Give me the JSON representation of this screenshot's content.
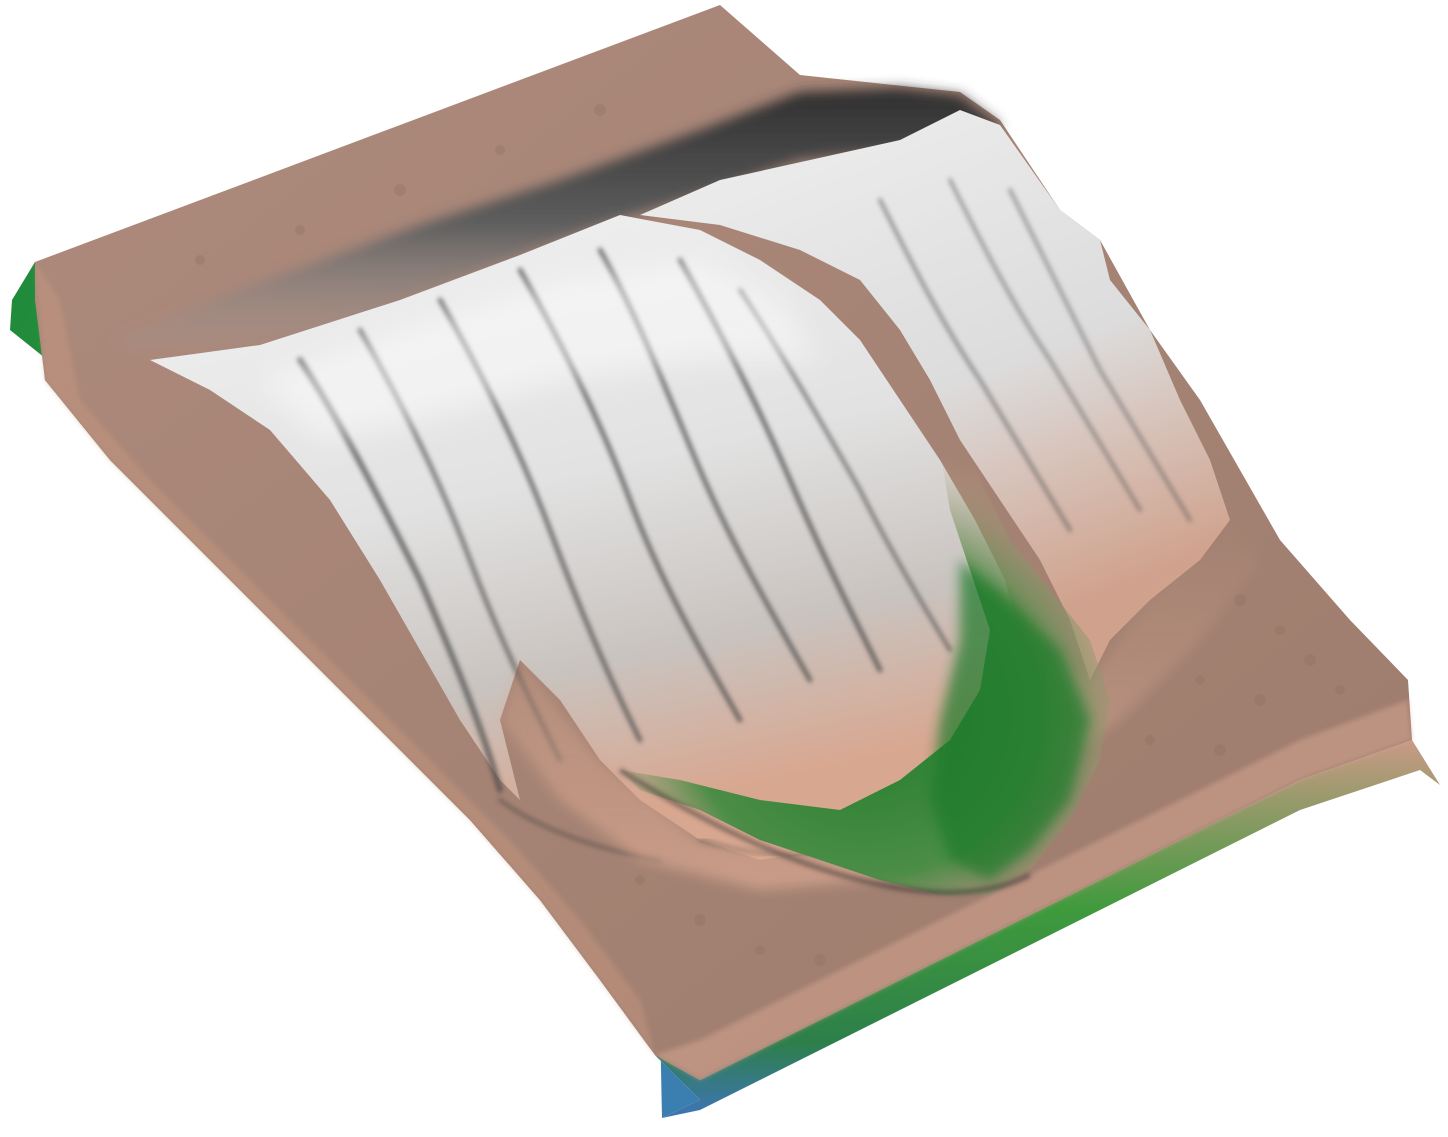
{
  "scene": {
    "subject": "terrain-relief-model",
    "palette": {
      "snow": "#e9e9e9",
      "snow_shadow": "#6f6f6f",
      "ridge_dark": "#3a3a3a",
      "rock": "#a9877a",
      "rock_light": "#d3a792",
      "grass": "#3f8f3a",
      "grass_dark": "#1f6b22",
      "water": "#3f74b8",
      "background": "#ffffff"
    }
  }
}
